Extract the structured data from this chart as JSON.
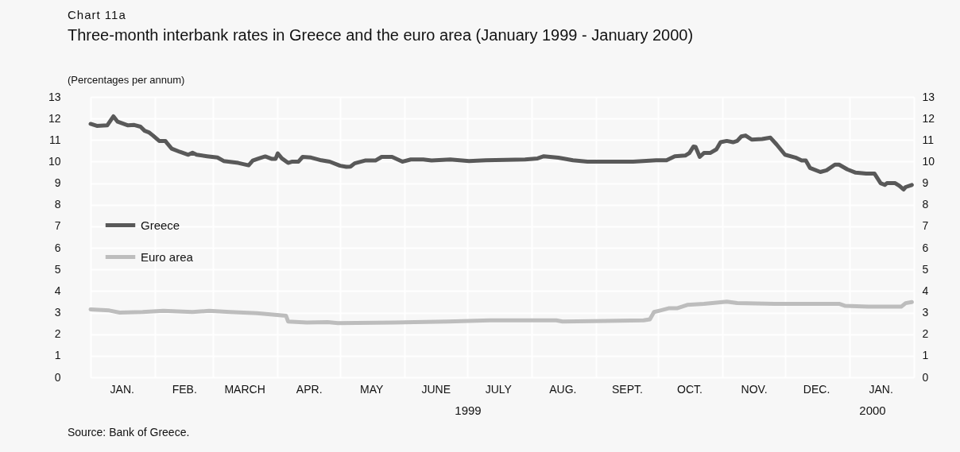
{
  "chart_data": {
    "type": "line",
    "title": "Three-month interbank rates in Greece and the euro area (January 1999 - January 2000)",
    "subtitle": "(Percentages per annum)",
    "annotations": [
      "Chart 11a",
      "1999",
      "2000",
      "Source: Bank of Greece."
    ],
    "xlim": [
      "1999-01-01",
      "2000-02-01"
    ],
    "xticks": [
      {
        "value": "1999-01-01",
        "label": null
      },
      {
        "value": "1999-02-01",
        "label": null
      },
      {
        "value": "1999-03-01",
        "label": null
      },
      {
        "value": "1999-04-01",
        "label": null
      },
      {
        "value": "1999-05-01",
        "label": null
      },
      {
        "value": "1999-06-01",
        "label": null
      },
      {
        "value": "1999-07-01",
        "label": null
      },
      {
        "value": "1999-08-01",
        "label": null
      },
      {
        "value": "1999-09-01",
        "label": null
      },
      {
        "value": "1999-10-01",
        "label": null
      },
      {
        "value": "1999-11-01",
        "label": null
      },
      {
        "value": "1999-12-01",
        "label": null
      },
      {
        "value": "2000-01-01",
        "label": null
      },
      {
        "value": "2000-02-01",
        "label": null
      },
      {
        "value": "1999-01-16",
        "label": "JAN."
      },
      {
        "value": "1999-02-15",
        "label": "FEB."
      },
      {
        "value": "1999-03-16",
        "label": "MARCH"
      },
      {
        "value": "1999-04-16",
        "label": "APR."
      },
      {
        "value": "1999-05-16",
        "label": "MAY"
      },
      {
        "value": "1999-06-16",
        "label": "JUNE"
      },
      {
        "value": "1999-07-16",
        "label": "JULY"
      },
      {
        "value": "1999-08-16",
        "label": "AUG."
      },
      {
        "value": "1999-09-16",
        "label": "SEPT."
      },
      {
        "value": "1999-10-16",
        "label": "OCT."
      },
      {
        "value": "1999-11-16",
        "label": "NOV."
      },
      {
        "value": "1999-12-16",
        "label": "DEC."
      },
      {
        "value": "2000-01-16",
        "label": "JAN."
      }
    ],
    "ylim": [
      0,
      13
    ],
    "yticks": [
      0,
      1,
      2,
      3,
      4,
      5,
      6,
      7,
      8,
      9,
      10,
      11,
      12,
      13
    ],
    "y2lim": [
      0,
      13
    ],
    "y2ticks": [
      0,
      1,
      2,
      3,
      4,
      5,
      6,
      7,
      8,
      9,
      10,
      11,
      12,
      13
    ],
    "grid": true,
    "legend": "left",
    "series": [
      {
        "name": "Greece",
        "color": "#595959",
        "x": [
          "1999-01-01",
          "1999-01-04",
          "1999-01-09",
          "1999-01-12",
          "1999-01-14",
          "1999-01-19",
          "1999-01-22",
          "1999-01-25",
          "1999-01-27",
          "1999-01-29",
          "1999-01-31",
          "1999-02-03",
          "1999-02-06",
          "1999-02-07",
          "1999-02-09",
          "1999-02-13",
          "1999-02-17",
          "1999-02-19",
          "1999-02-21",
          "1999-02-26",
          "1999-03-03",
          "1999-03-06",
          "1999-03-13",
          "1999-03-18",
          "1999-03-20",
          "1999-03-23",
          "1999-03-26",
          "1999-03-29",
          "1999-03-31",
          "1999-04-01",
          "1999-04-03",
          "1999-04-06",
          "1999-04-08",
          "1999-04-11",
          "1999-04-13",
          "1999-04-17",
          "1999-04-22",
          "1999-04-26",
          "1999-05-01",
          "1999-05-04",
          "1999-05-06",
          "1999-05-08",
          "1999-05-13",
          "1999-05-18",
          "1999-05-21",
          "1999-05-26",
          "1999-05-31",
          "1999-06-04",
          "1999-06-10",
          "1999-06-14",
          "1999-06-23",
          "1999-07-02",
          "1999-07-10",
          "1999-07-29",
          "1999-08-04",
          "1999-08-07",
          "1999-08-14",
          "1999-08-21",
          "1999-08-28",
          "1999-09-19",
          "1999-09-30",
          "1999-10-05",
          "1999-10-09",
          "1999-10-14",
          "1999-10-16",
          "1999-10-18",
          "1999-10-19",
          "1999-10-21",
          "1999-10-23",
          "1999-10-26",
          "1999-10-29",
          "1999-10-31",
          "1999-11-03",
          "1999-11-06",
          "1999-11-08",
          "1999-11-10",
          "1999-11-12",
          "1999-11-15",
          "1999-11-20",
          "1999-11-24",
          "1999-11-27",
          "1999-12-01",
          "1999-12-06",
          "1999-12-09",
          "1999-12-11",
          "1999-12-13",
          "1999-12-18",
          "1999-12-21",
          "1999-12-25",
          "1999-12-27",
          "1999-12-31",
          "2000-01-04",
          "2000-01-09",
          "2000-01-13",
          "2000-01-16",
          "2000-01-18",
          "2000-01-19",
          "2000-01-23",
          "2000-01-25",
          "2000-01-27",
          "2000-01-28",
          "2000-01-31"
        ],
        "values": [
          11.75,
          11.66,
          11.68,
          12.1,
          11.85,
          11.68,
          11.7,
          11.62,
          11.43,
          11.36,
          11.21,
          10.96,
          10.96,
          10.83,
          10.6,
          10.45,
          10.32,
          10.41,
          10.32,
          10.25,
          10.19,
          10.03,
          9.94,
          9.83,
          10.05,
          10.15,
          10.24,
          10.13,
          10.13,
          10.38,
          10.15,
          9.94,
          10.0,
          10.0,
          10.22,
          10.19,
          10.06,
          10.0,
          9.81,
          9.76,
          9.77,
          9.92,
          10.05,
          10.05,
          10.22,
          10.22,
          10.0,
          10.1,
          10.1,
          10.05,
          10.1,
          10.03,
          10.06,
          10.1,
          10.15,
          10.25,
          10.18,
          10.06,
          10.0,
          10.0,
          10.06,
          10.06,
          10.25,
          10.28,
          10.4,
          10.7,
          10.68,
          10.22,
          10.4,
          10.4,
          10.57,
          10.9,
          10.96,
          10.9,
          10.96,
          11.17,
          11.21,
          11.02,
          11.05,
          11.11,
          10.79,
          10.32,
          10.19,
          10.05,
          10.05,
          9.71,
          9.52,
          9.6,
          9.86,
          9.86,
          9.64,
          9.49,
          9.45,
          9.45,
          9.0,
          8.92,
          9.0,
          9.0,
          8.88,
          8.71,
          8.82,
          8.92
        ]
      },
      {
        "name": "Euro area",
        "color": "#bdbdbd",
        "x": [
          "1999-01-01",
          "1999-01-10",
          "1999-01-15",
          "1999-01-26",
          "1999-02-05",
          "1999-02-19",
          "1999-02-27",
          "1999-03-09",
          "1999-03-22",
          "1999-04-05",
          "1999-04-06",
          "1999-04-15",
          "1999-04-25",
          "1999-04-30",
          "1999-05-27",
          "1999-06-22",
          "1999-07-12",
          "1999-08-13",
          "1999-08-16",
          "1999-09-24",
          "1999-09-27",
          "1999-09-29",
          "1999-10-02",
          "1999-10-06",
          "1999-10-10",
          "1999-10-15",
          "1999-10-23",
          "1999-11-03",
          "1999-11-08",
          "1999-11-26",
          "1999-12-27",
          "1999-12-30",
          "2000-01-10",
          "2000-01-26",
          "2000-01-28",
          "2000-01-31"
        ],
        "values": [
          3.15,
          3.1,
          3.0,
          3.03,
          3.08,
          3.03,
          3.08,
          3.03,
          2.97,
          2.85,
          2.59,
          2.54,
          2.56,
          2.51,
          2.54,
          2.59,
          2.64,
          2.64,
          2.59,
          2.64,
          2.69,
          3.03,
          3.1,
          3.2,
          3.2,
          3.36,
          3.41,
          3.51,
          3.44,
          3.41,
          3.41,
          3.31,
          3.28,
          3.28,
          3.44,
          3.49
        ]
      }
    ]
  }
}
